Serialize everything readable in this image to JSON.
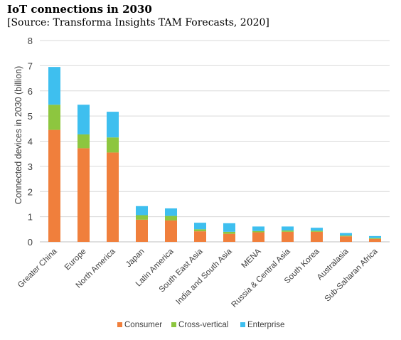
{
  "header": {
    "title": "IoT connections in 2030",
    "subtitle": "[Source: Transforma Insights TAM Forecasts, 2020]"
  },
  "chart_data": {
    "type": "bar",
    "stacked": true,
    "categories": [
      "Greater China",
      "Europe",
      "North America",
      "Japan",
      "Latin America",
      "South East Asia",
      "India and South Asia",
      "MENA",
      "Russia & Central Asia",
      "South Korea",
      "Australasia",
      "Sub-Saharan Africa"
    ],
    "series": [
      {
        "name": "Consumer",
        "color": "#f07f3c",
        "values": [
          4.45,
          3.72,
          3.55,
          0.88,
          0.85,
          0.42,
          0.32,
          0.38,
          0.4,
          0.4,
          0.22,
          0.12
        ]
      },
      {
        "name": "Cross-vertical",
        "color": "#8dc63f",
        "values": [
          1.0,
          0.55,
          0.6,
          0.18,
          0.18,
          0.08,
          0.08,
          0.05,
          0.05,
          0.04,
          0.03,
          0.03
        ]
      },
      {
        "name": "Enterprise",
        "color": "#3ebfef",
        "values": [
          1.5,
          1.18,
          1.02,
          0.36,
          0.3,
          0.26,
          0.34,
          0.18,
          0.16,
          0.12,
          0.1,
          0.08
        ]
      }
    ],
    "ylabel": "Connected devices in 2030 (billion)",
    "ylim": [
      0,
      8
    ],
    "yticks": [
      0,
      1,
      2,
      3,
      4,
      5,
      6,
      7,
      8
    ],
    "grid": true,
    "legend_position": "bottom"
  }
}
